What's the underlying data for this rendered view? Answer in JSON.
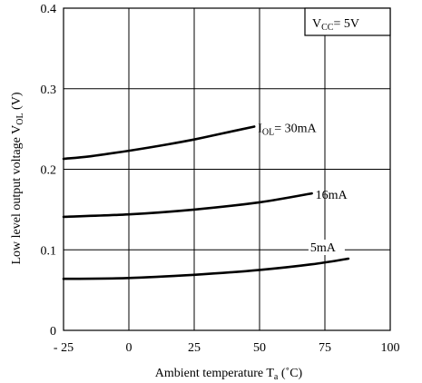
{
  "chart_data": {
    "type": "line",
    "xlabel": {
      "main": "Ambient temperature T",
      "sub": "a",
      "unit": " (˚C)"
    },
    "ylabel": {
      "main": "Low level output voltage V",
      "sub": "OL",
      "unit": "  (V)"
    },
    "xlim": [
      -25,
      100
    ],
    "ylim": [
      0,
      0.4
    ],
    "x_ticks": [
      -25,
      0,
      25,
      50,
      75,
      100
    ],
    "x_tick_labels": [
      "- 25",
      "0",
      "25",
      "50",
      "75",
      "100"
    ],
    "y_ticks": [
      0,
      0.1,
      0.2,
      0.3,
      0.4
    ],
    "y_tick_labels": [
      "0",
      "0.1",
      "0.2",
      "0.3",
      "0.4"
    ],
    "grid": true,
    "condition": {
      "main": "V",
      "sub": "CC",
      "rest": "= 5V"
    },
    "series": [
      {
        "name": "30mA",
        "label_main": "I",
        "label_sub": "OL",
        "label_rest": "= 30mA",
        "x": [
          -25,
          -15,
          0,
          15,
          25,
          35,
          48
        ],
        "y": [
          0.213,
          0.216,
          0.223,
          0.231,
          0.237,
          0.244,
          0.253
        ]
      },
      {
        "name": "16mA",
        "label_main": "16mA",
        "x": [
          -25,
          0,
          25,
          50,
          70
        ],
        "y": [
          0.141,
          0.144,
          0.15,
          0.159,
          0.17
        ]
      },
      {
        "name": "5mA",
        "label_main": "5mA",
        "x": [
          -25,
          0,
          25,
          50,
          70,
          84
        ],
        "y": [
          0.064,
          0.065,
          0.069,
          0.075,
          0.082,
          0.089
        ]
      }
    ]
  }
}
